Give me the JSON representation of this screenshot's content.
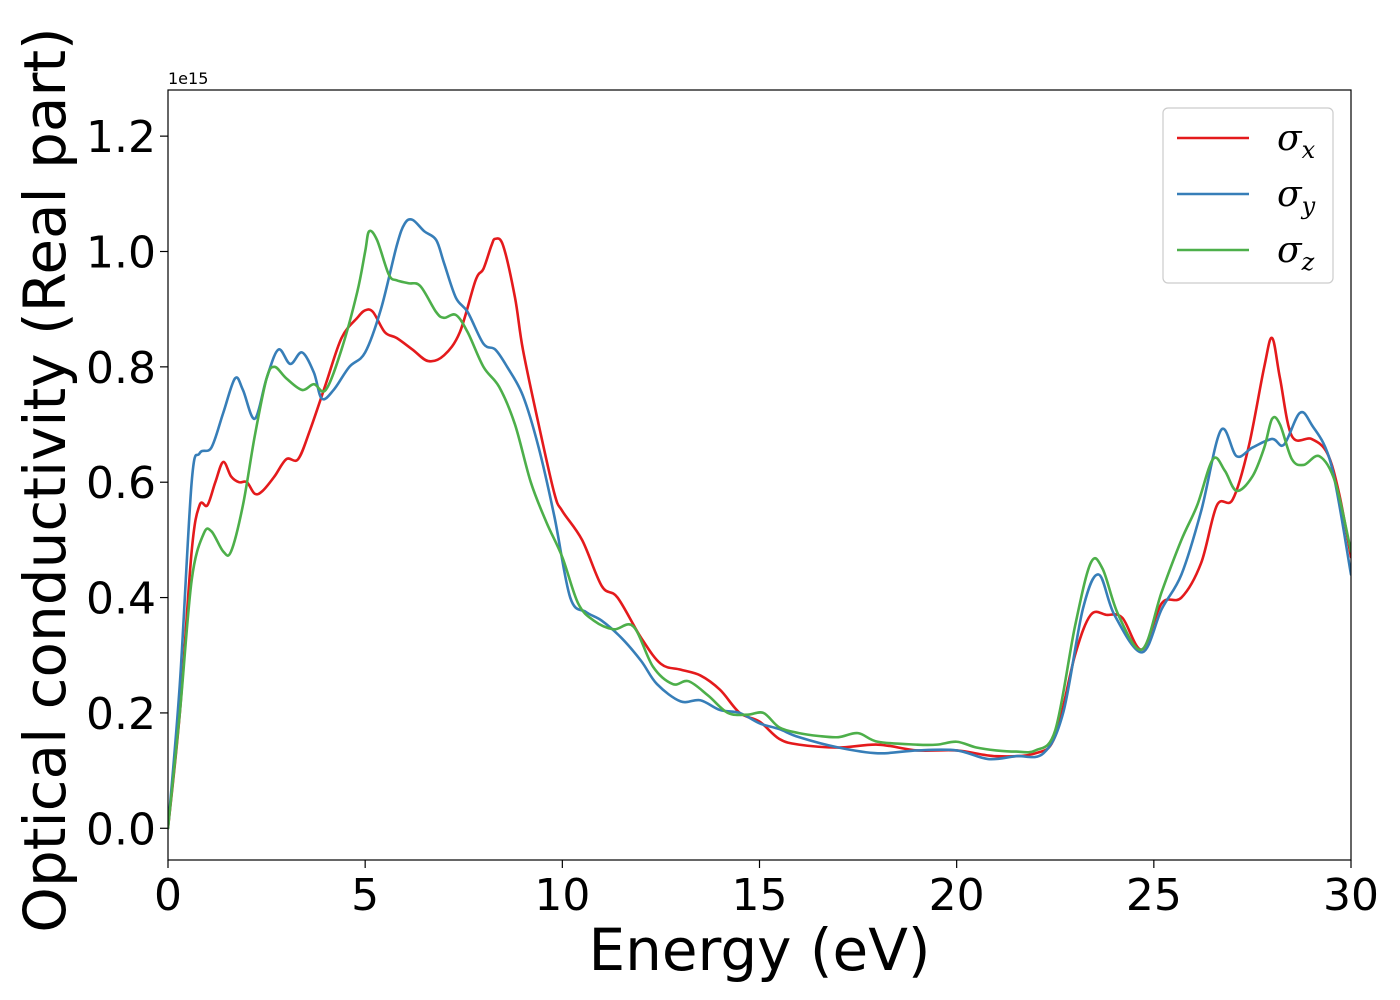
{
  "chart_data": {
    "type": "line",
    "xlabel": "Energy (eV)",
    "ylabel": "Optical conductivity (Real part)",
    "y_offset_label": "1e15",
    "xlim": [
      0,
      30
    ],
    "ylim": [
      -0.055,
      1.28
    ],
    "x_ticks": [
      0,
      5,
      10,
      15,
      20,
      25,
      30
    ],
    "x_tick_labels": [
      "0",
      "5",
      "10",
      "15",
      "20",
      "25",
      "30"
    ],
    "y_ticks": [
      0.0,
      0.2,
      0.4,
      0.6,
      0.8,
      1.0,
      1.2
    ],
    "y_tick_labels": [
      "0.0",
      "0.2",
      "0.4",
      "0.6",
      "0.8",
      "1.0",
      "1.2"
    ],
    "grid": false,
    "legend_position": "top-right",
    "series": [
      {
        "name": "σ",
        "subscript": "x",
        "color": "#e41a1c",
        "points": [
          [
            0,
            0.0
          ],
          [
            0.3,
            0.2
          ],
          [
            0.6,
            0.48
          ],
          [
            0.8,
            0.56
          ],
          [
            1.0,
            0.56
          ],
          [
            1.2,
            0.6
          ],
          [
            1.4,
            0.635
          ],
          [
            1.6,
            0.61
          ],
          [
            1.8,
            0.6
          ],
          [
            2.0,
            0.6
          ],
          [
            2.2,
            0.58
          ],
          [
            2.4,
            0.585
          ],
          [
            2.7,
            0.61
          ],
          [
            3.0,
            0.64
          ],
          [
            3.3,
            0.64
          ],
          [
            3.6,
            0.69
          ],
          [
            4.0,
            0.77
          ],
          [
            4.4,
            0.85
          ],
          [
            4.8,
            0.885
          ],
          [
            5.0,
            0.898
          ],
          [
            5.2,
            0.895
          ],
          [
            5.5,
            0.86
          ],
          [
            5.8,
            0.85
          ],
          [
            6.2,
            0.83
          ],
          [
            6.6,
            0.81
          ],
          [
            7.0,
            0.82
          ],
          [
            7.4,
            0.86
          ],
          [
            7.8,
            0.95
          ],
          [
            8.0,
            0.97
          ],
          [
            8.2,
            1.01
          ],
          [
            8.3,
            1.022
          ],
          [
            8.5,
            1.01
          ],
          [
            8.8,
            0.92
          ],
          [
            9.0,
            0.83
          ],
          [
            9.4,
            0.7
          ],
          [
            9.8,
            0.58
          ],
          [
            10.0,
            0.55
          ],
          [
            10.5,
            0.5
          ],
          [
            11.0,
            0.42
          ],
          [
            11.4,
            0.4
          ],
          [
            12.0,
            0.33
          ],
          [
            12.5,
            0.285
          ],
          [
            13.0,
            0.275
          ],
          [
            13.5,
            0.265
          ],
          [
            14.0,
            0.24
          ],
          [
            14.5,
            0.2
          ],
          [
            15.0,
            0.185
          ],
          [
            15.5,
            0.155
          ],
          [
            16.0,
            0.145
          ],
          [
            17.0,
            0.14
          ],
          [
            18.0,
            0.145
          ],
          [
            19.0,
            0.135
          ],
          [
            20.0,
            0.135
          ],
          [
            21.0,
            0.125
          ],
          [
            22.0,
            0.13
          ],
          [
            22.5,
            0.16
          ],
          [
            23.0,
            0.3
          ],
          [
            23.4,
            0.37
          ],
          [
            23.8,
            0.37
          ],
          [
            24.2,
            0.365
          ],
          [
            24.7,
            0.31
          ],
          [
            25.2,
            0.39
          ],
          [
            25.7,
            0.4
          ],
          [
            26.2,
            0.46
          ],
          [
            26.6,
            0.56
          ],
          [
            27.0,
            0.57
          ],
          [
            27.4,
            0.66
          ],
          [
            27.8,
            0.8
          ],
          [
            28.0,
            0.85
          ],
          [
            28.2,
            0.78
          ],
          [
            28.5,
            0.68
          ],
          [
            29.0,
            0.675
          ],
          [
            29.4,
            0.65
          ],
          [
            29.7,
            0.58
          ],
          [
            30.0,
            0.47
          ]
        ]
      },
      {
        "name": "σ",
        "subscript": "y",
        "color": "#377eb8",
        "points": [
          [
            0,
            0.0
          ],
          [
            0.3,
            0.25
          ],
          [
            0.6,
            0.6
          ],
          [
            0.8,
            0.65
          ],
          [
            1.1,
            0.66
          ],
          [
            1.4,
            0.72
          ],
          [
            1.7,
            0.78
          ],
          [
            1.9,
            0.76
          ],
          [
            2.2,
            0.71
          ],
          [
            2.5,
            0.78
          ],
          [
            2.8,
            0.83
          ],
          [
            3.1,
            0.805
          ],
          [
            3.4,
            0.825
          ],
          [
            3.7,
            0.79
          ],
          [
            3.9,
            0.745
          ],
          [
            4.2,
            0.76
          ],
          [
            4.6,
            0.8
          ],
          [
            5.0,
            0.825
          ],
          [
            5.4,
            0.9
          ],
          [
            5.8,
            1.01
          ],
          [
            6.0,
            1.048
          ],
          [
            6.2,
            1.055
          ],
          [
            6.5,
            1.035
          ],
          [
            6.8,
            1.02
          ],
          [
            7.0,
            0.98
          ],
          [
            7.3,
            0.92
          ],
          [
            7.6,
            0.895
          ],
          [
            8.0,
            0.84
          ],
          [
            8.3,
            0.83
          ],
          [
            8.6,
            0.8
          ],
          [
            9.0,
            0.75
          ],
          [
            9.4,
            0.66
          ],
          [
            9.8,
            0.54
          ],
          [
            10.2,
            0.4
          ],
          [
            10.6,
            0.375
          ],
          [
            11.0,
            0.36
          ],
          [
            11.5,
            0.33
          ],
          [
            12.0,
            0.29
          ],
          [
            12.4,
            0.25
          ],
          [
            13.0,
            0.22
          ],
          [
            13.5,
            0.222
          ],
          [
            14.0,
            0.205
          ],
          [
            14.5,
            0.2
          ],
          [
            15.0,
            0.182
          ],
          [
            15.5,
            0.172
          ],
          [
            16.0,
            0.158
          ],
          [
            17.0,
            0.14
          ],
          [
            18.0,
            0.13
          ],
          [
            19.0,
            0.135
          ],
          [
            20.0,
            0.135
          ],
          [
            20.8,
            0.12
          ],
          [
            21.5,
            0.125
          ],
          [
            22.2,
            0.13
          ],
          [
            22.7,
            0.2
          ],
          [
            23.2,
            0.38
          ],
          [
            23.6,
            0.44
          ],
          [
            24.0,
            0.37
          ],
          [
            24.7,
            0.305
          ],
          [
            25.2,
            0.38
          ],
          [
            25.7,
            0.44
          ],
          [
            26.2,
            0.55
          ],
          [
            26.7,
            0.69
          ],
          [
            27.1,
            0.645
          ],
          [
            27.5,
            0.66
          ],
          [
            28.0,
            0.675
          ],
          [
            28.3,
            0.665
          ],
          [
            28.7,
            0.72
          ],
          [
            29.0,
            0.7
          ],
          [
            29.5,
            0.63
          ],
          [
            30.0,
            0.44
          ]
        ]
      },
      {
        "name": "σ",
        "subscript": "z",
        "color": "#4daf4a",
        "points": [
          [
            0,
            0.0
          ],
          [
            0.3,
            0.2
          ],
          [
            0.6,
            0.43
          ],
          [
            0.9,
            0.51
          ],
          [
            1.1,
            0.515
          ],
          [
            1.4,
            0.48
          ],
          [
            1.6,
            0.48
          ],
          [
            1.9,
            0.56
          ],
          [
            2.2,
            0.68
          ],
          [
            2.5,
            0.78
          ],
          [
            2.7,
            0.8
          ],
          [
            3.0,
            0.78
          ],
          [
            3.4,
            0.76
          ],
          [
            3.7,
            0.77
          ],
          [
            4.0,
            0.76
          ],
          [
            4.4,
            0.83
          ],
          [
            4.8,
            0.93
          ],
          [
            5.0,
            1.0
          ],
          [
            5.1,
            1.035
          ],
          [
            5.3,
            1.02
          ],
          [
            5.6,
            0.96
          ],
          [
            5.8,
            0.95
          ],
          [
            6.1,
            0.945
          ],
          [
            6.4,
            0.94
          ],
          [
            6.8,
            0.895
          ],
          [
            7.0,
            0.885
          ],
          [
            7.3,
            0.89
          ],
          [
            7.6,
            0.86
          ],
          [
            8.0,
            0.8
          ],
          [
            8.4,
            0.765
          ],
          [
            8.8,
            0.7
          ],
          [
            9.2,
            0.6
          ],
          [
            9.6,
            0.53
          ],
          [
            10.0,
            0.47
          ],
          [
            10.4,
            0.39
          ],
          [
            10.8,
            0.36
          ],
          [
            11.3,
            0.345
          ],
          [
            11.8,
            0.35
          ],
          [
            12.3,
            0.28
          ],
          [
            12.8,
            0.25
          ],
          [
            13.2,
            0.255
          ],
          [
            13.7,
            0.23
          ],
          [
            14.2,
            0.2
          ],
          [
            14.7,
            0.197
          ],
          [
            15.1,
            0.2
          ],
          [
            15.5,
            0.175
          ],
          [
            16.0,
            0.165
          ],
          [
            16.5,
            0.16
          ],
          [
            17.0,
            0.158
          ],
          [
            17.5,
            0.165
          ],
          [
            18.0,
            0.15
          ],
          [
            19.0,
            0.145
          ],
          [
            19.5,
            0.145
          ],
          [
            20.0,
            0.15
          ],
          [
            20.5,
            0.14
          ],
          [
            21.0,
            0.135
          ],
          [
            21.5,
            0.133
          ],
          [
            22.0,
            0.135
          ],
          [
            22.5,
            0.17
          ],
          [
            23.0,
            0.35
          ],
          [
            23.4,
            0.46
          ],
          [
            23.7,
            0.45
          ],
          [
            24.1,
            0.37
          ],
          [
            24.7,
            0.31
          ],
          [
            25.2,
            0.41
          ],
          [
            25.7,
            0.5
          ],
          [
            26.1,
            0.56
          ],
          [
            26.5,
            0.64
          ],
          [
            26.8,
            0.62
          ],
          [
            27.1,
            0.585
          ],
          [
            27.5,
            0.61
          ],
          [
            27.8,
            0.66
          ],
          [
            28.0,
            0.71
          ],
          [
            28.2,
            0.7
          ],
          [
            28.5,
            0.64
          ],
          [
            28.8,
            0.63
          ],
          [
            29.2,
            0.645
          ],
          [
            29.6,
            0.6
          ],
          [
            30.0,
            0.48
          ]
        ]
      }
    ]
  }
}
